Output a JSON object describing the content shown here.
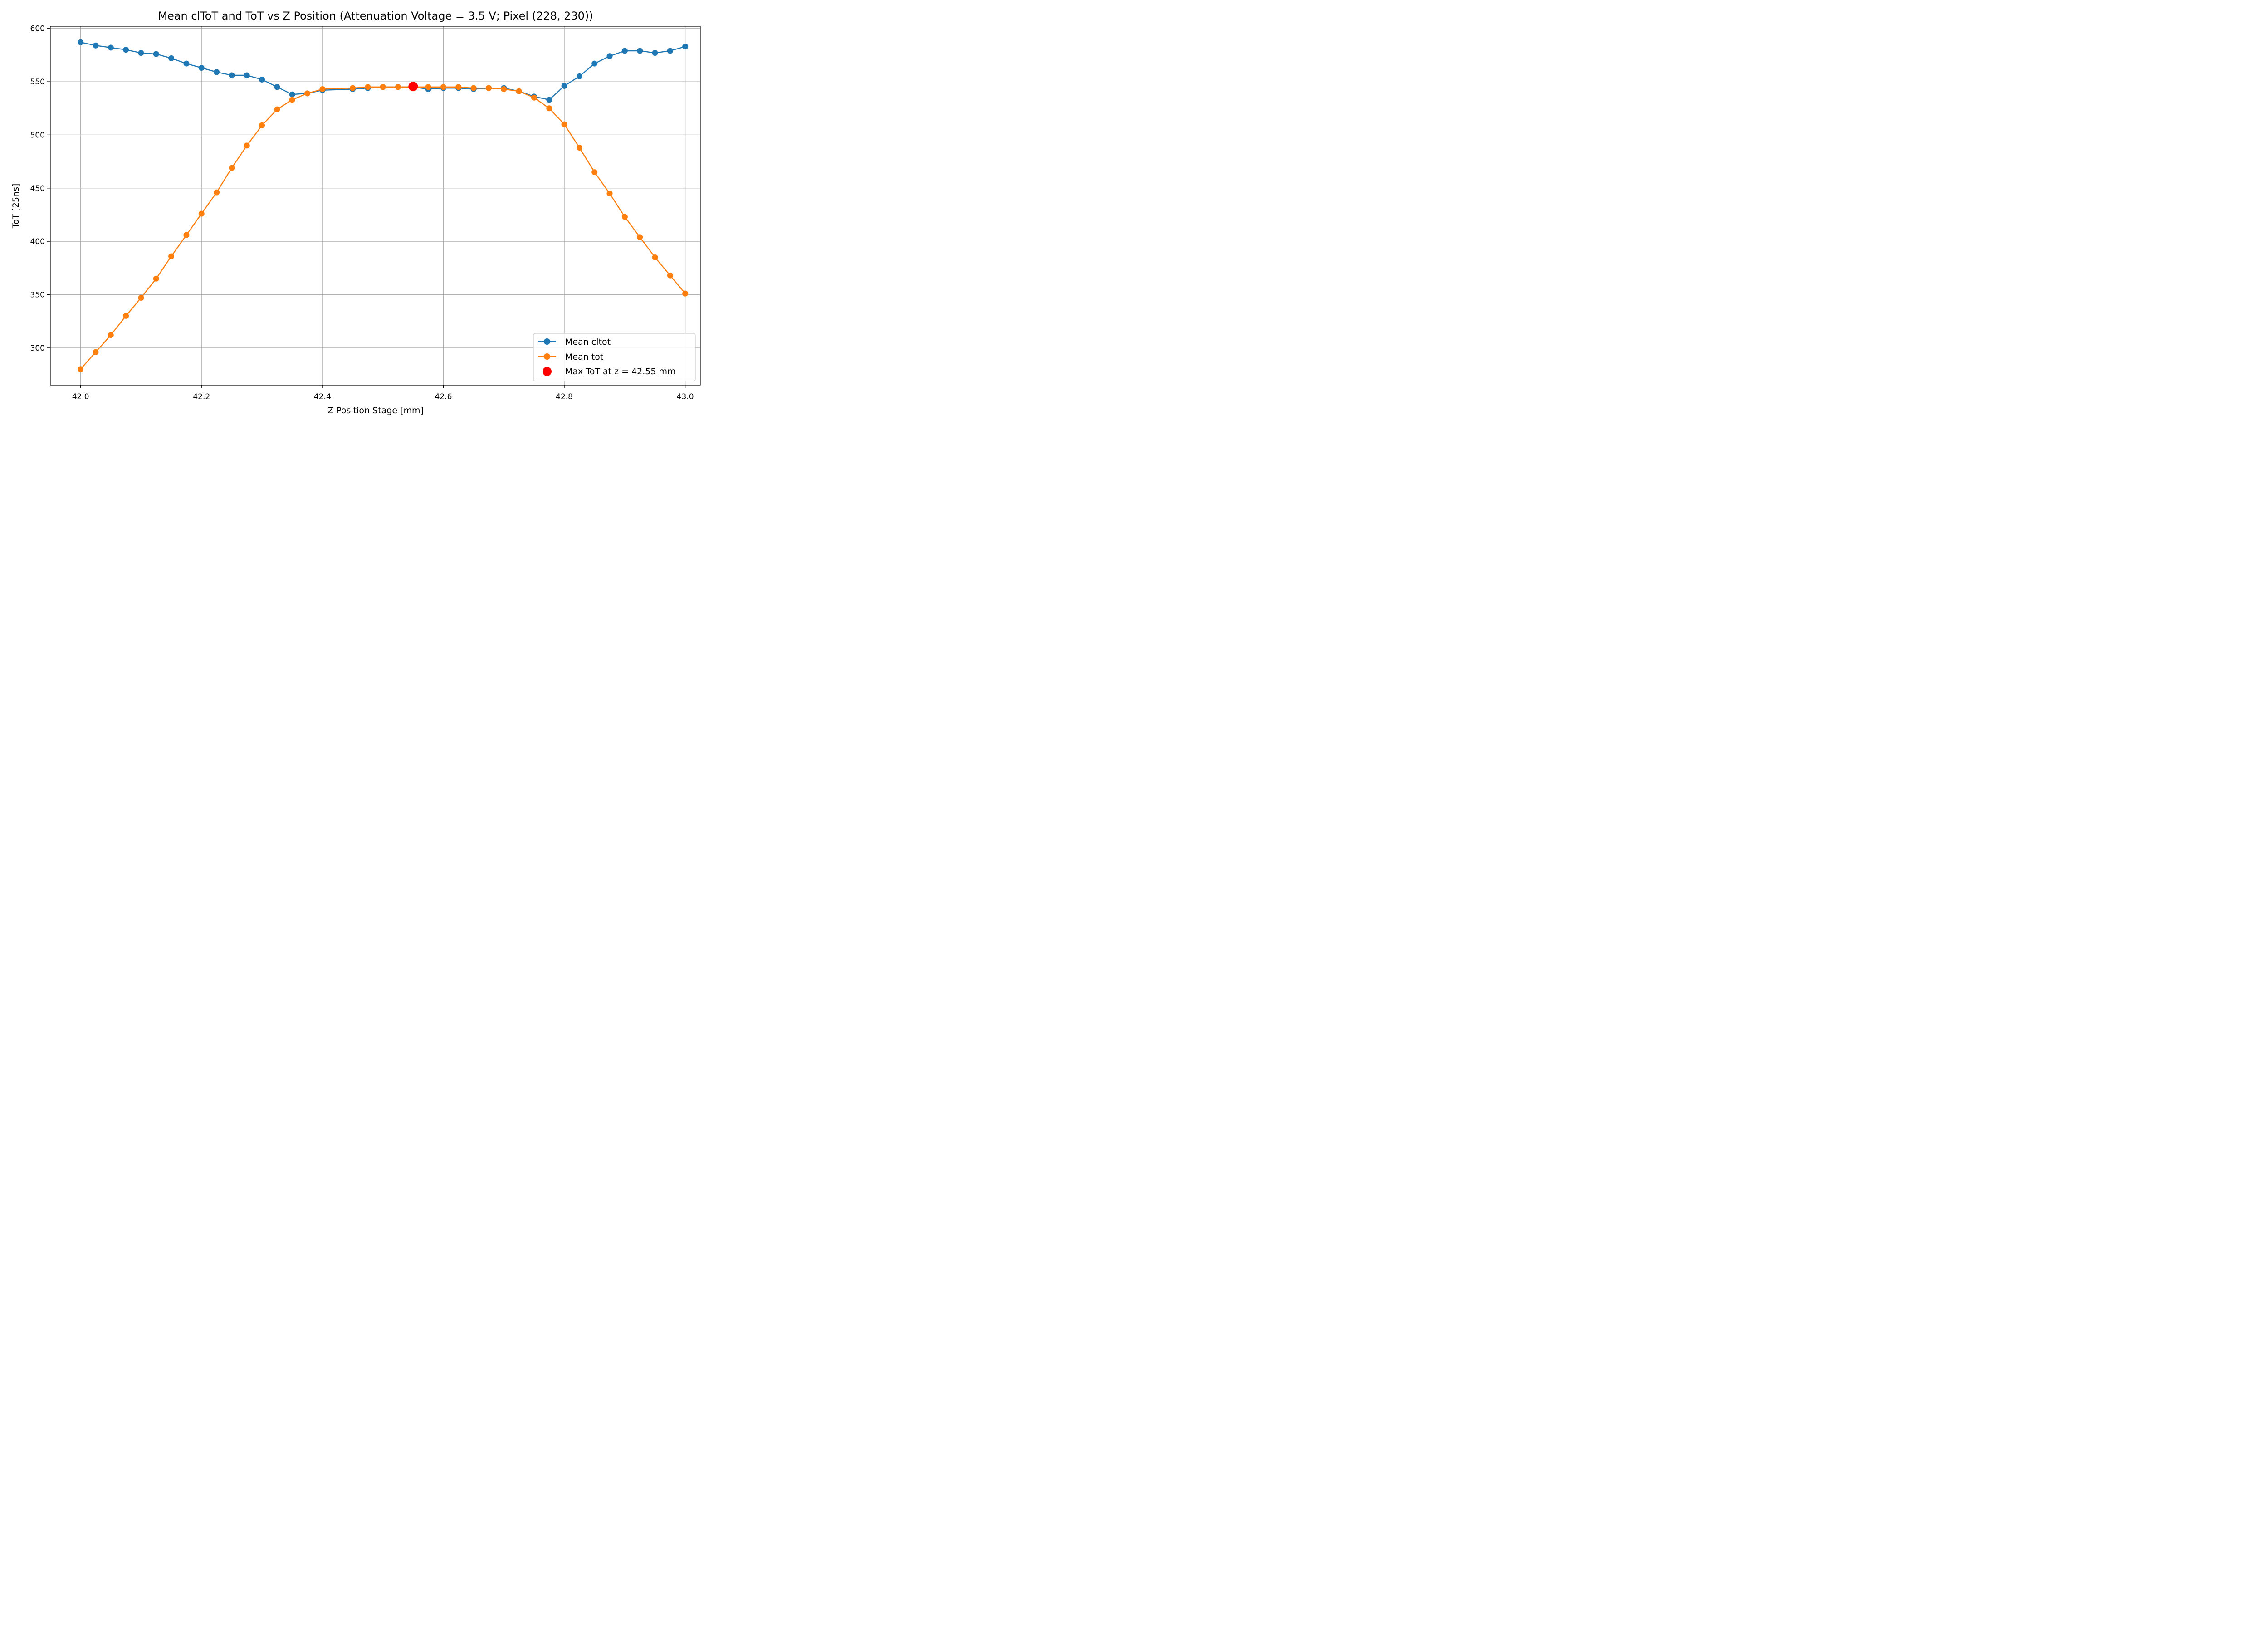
{
  "chart_data": {
    "type": "line",
    "title": "Mean clToT and ToT vs Z Position (Attenuation Voltage = 3.5 V; Pixel (228, 230))",
    "xlabel": "Z Position Stage [mm]",
    "ylabel": "ToT [25ns]",
    "xlim": [
      41.95,
      43.025
    ],
    "ylim": [
      265,
      602
    ],
    "x_ticks": [
      42.0,
      42.2,
      42.4,
      42.6,
      42.8,
      43.0
    ],
    "x_tick_labels": [
      "42.0",
      "42.2",
      "42.4",
      "42.6",
      "42.8",
      "43.0"
    ],
    "y_ticks": [
      300,
      350,
      400,
      450,
      500,
      550,
      600
    ],
    "y_tick_labels": [
      "300",
      "350",
      "400",
      "450",
      "500",
      "550",
      "600"
    ],
    "grid": true,
    "legend_position": "lower-right",
    "series": [
      {
        "name": "Mean cltot",
        "color": "#1f77b4",
        "marker": "circle",
        "x": [
          42.0,
          42.025,
          42.05,
          42.075,
          42.1,
          42.125,
          42.15,
          42.175,
          42.2,
          42.225,
          42.25,
          42.275,
          42.3,
          42.325,
          42.35,
          42.375,
          42.4,
          42.45,
          42.475,
          42.5,
          42.525,
          42.55,
          42.575,
          42.6,
          42.625,
          42.65,
          42.675,
          42.7,
          42.725,
          42.75,
          42.775,
          42.8,
          42.825,
          42.85,
          42.875,
          42.9,
          42.925,
          42.95,
          42.975,
          43.0
        ],
        "values": [
          587,
          584,
          582,
          580,
          577,
          576,
          572,
          567,
          563,
          559,
          556,
          556,
          552,
          545,
          538,
          539,
          542,
          543,
          544,
          545,
          545,
          545,
          543,
          544,
          544,
          543,
          544,
          544,
          541,
          536,
          533,
          546,
          555,
          567,
          574,
          579,
          579,
          577,
          579,
          583
        ]
      },
      {
        "name": "Mean tot",
        "color": "#ff7f0e",
        "marker": "circle",
        "x": [
          42.0,
          42.025,
          42.05,
          42.075,
          42.1,
          42.125,
          42.15,
          42.175,
          42.2,
          42.225,
          42.25,
          42.275,
          42.3,
          42.325,
          42.35,
          42.375,
          42.4,
          42.45,
          42.475,
          42.5,
          42.525,
          42.55,
          42.575,
          42.6,
          42.625,
          42.65,
          42.675,
          42.7,
          42.725,
          42.75,
          42.775,
          42.8,
          42.825,
          42.85,
          42.875,
          42.9,
          42.925,
          42.95,
          42.975,
          43.0
        ],
        "values": [
          280,
          296,
          312,
          330,
          347,
          365,
          386,
          406,
          426,
          446,
          469,
          490,
          509,
          524,
          533,
          539,
          543,
          544,
          545,
          545,
          545,
          545,
          545,
          545,
          545,
          544,
          544,
          543,
          541,
          535,
          525,
          510,
          488,
          465,
          445,
          423,
          404,
          385,
          368,
          351
        ]
      }
    ],
    "highlight": {
      "name": "Max ToT at z = 42.55 mm",
      "color": "#ff0000",
      "x": 42.55,
      "y": 545.5
    }
  }
}
